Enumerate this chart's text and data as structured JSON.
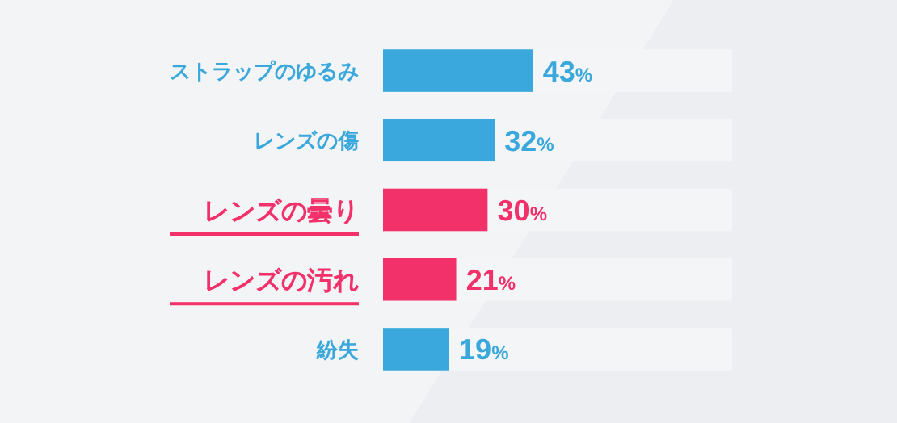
{
  "chart_data": {
    "type": "bar",
    "orientation": "horizontal",
    "stacked": true,
    "categories": [
      "ストラップのゆるみ",
      "レンズの傷",
      "レンズの曇り",
      "レンズの汚れ",
      "紛失"
    ],
    "series": [
      {
        "colors": [
          "#3aa8dc",
          "#3aa8dc",
          "#f2306a",
          "#f2306a",
          "#3aa8dc"
        ],
        "values": [
          43,
          32,
          30,
          21,
          19
        ],
        "value_labels": [
          "43%",
          "32%",
          "30%",
          "21%",
          "19%"
        ]
      },
      {
        "color": "#f4f5f7",
        "values": [
          57,
          68,
          70,
          79,
          81
        ]
      }
    ],
    "xlim": [
      0,
      100
    ],
    "tick_labels": "y"
  }
}
